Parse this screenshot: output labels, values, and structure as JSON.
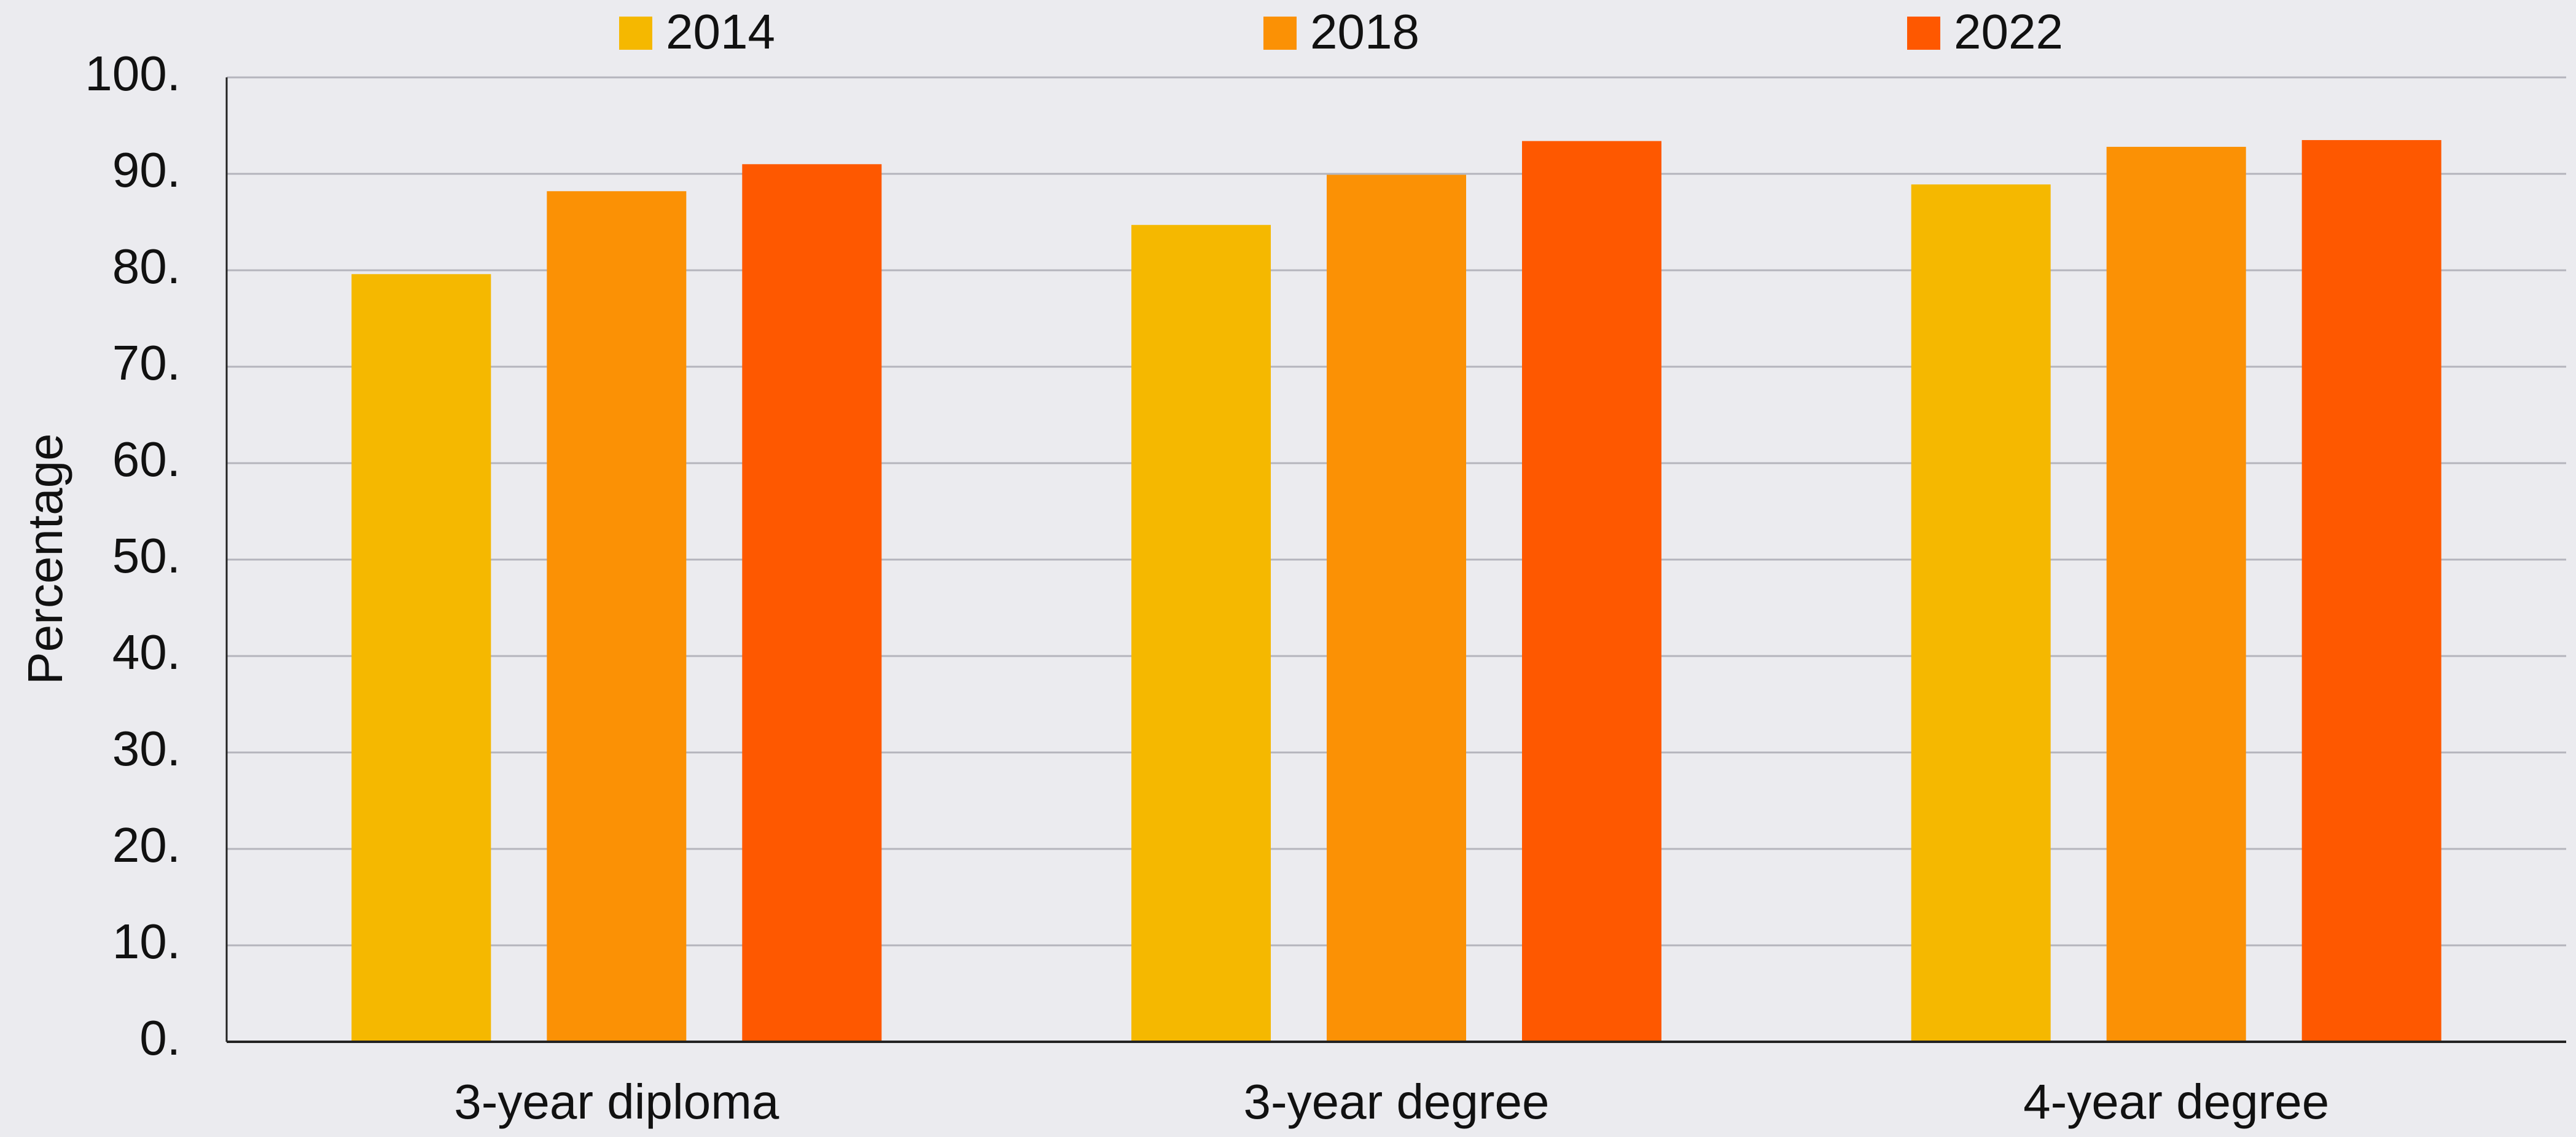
{
  "chart_data": {
    "type": "bar",
    "y_label": "Percentage",
    "categories": [
      "3-year diploma",
      "3-year degree",
      "4-year degree"
    ],
    "series": [
      {
        "name": "2014",
        "color": "#f5b800",
        "values": [
          79.6,
          84.7,
          88.9
        ]
      },
      {
        "name": "2018",
        "color": "#fb9105",
        "values": [
          88.2,
          89.9,
          92.8
        ]
      },
      {
        "name": "2022",
        "color": "#fe5800",
        "values": [
          91.0,
          93.4,
          93.5
        ]
      }
    ],
    "ylim": [
      0,
      100
    ],
    "yticks": [
      {
        "value": 0,
        "label": "0."
      },
      {
        "value": 10,
        "label": "10."
      },
      {
        "value": 20,
        "label": "20."
      },
      {
        "value": 30,
        "label": "30."
      },
      {
        "value": 40,
        "label": "40."
      },
      {
        "value": 50,
        "label": "50."
      },
      {
        "value": 60,
        "label": "60."
      },
      {
        "value": 70,
        "label": "70."
      },
      {
        "value": 80,
        "label": "80."
      },
      {
        "value": 90,
        "label": "90."
      },
      {
        "value": 100,
        "label": "100."
      }
    ],
    "grid": true,
    "legend": "top"
  }
}
